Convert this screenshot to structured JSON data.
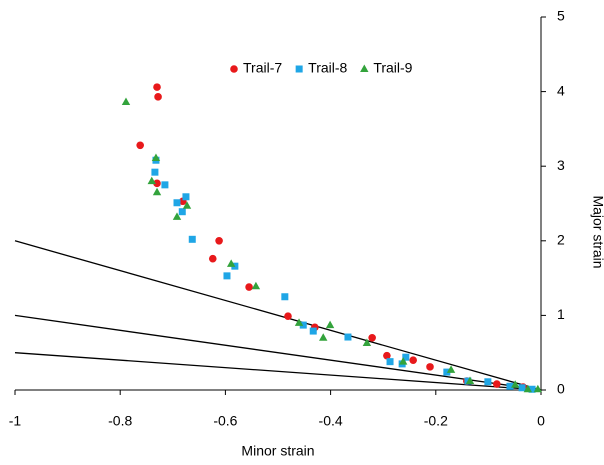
{
  "chart_data": {
    "type": "scatter",
    "x_label": "Minor strain",
    "y_label": "Major strain",
    "xlim": [
      -1,
      0
    ],
    "ylim": [
      0,
      5
    ],
    "xticks": [
      -1,
      -0.8,
      -0.6,
      -0.4,
      -0.2,
      0
    ],
    "yticks": [
      0,
      1,
      2,
      3,
      4,
      5
    ],
    "legend": "top",
    "reference_lines": [
      {
        "x": [
          -1,
          0
        ],
        "y": [
          2,
          0
        ],
        "color": "#000000"
      },
      {
        "x": [
          -1,
          0
        ],
        "y": [
          1,
          0
        ],
        "color": "#000000"
      },
      {
        "x": [
          -1,
          0
        ],
        "y": [
          0.5,
          0
        ],
        "color": "#000000"
      }
    ],
    "series": [
      {
        "name": "Trail-7",
        "color": "#e8191b",
        "marker": "circle",
        "x": [
          -0.73,
          -0.728,
          -0.762,
          -0.73,
          -0.681,
          -0.612,
          -0.624,
          -0.555,
          -0.481,
          -0.43,
          -0.321,
          -0.293,
          -0.243,
          -0.211,
          -0.141,
          -0.084,
          -0.034
        ],
        "values": [
          4.06,
          3.93,
          3.28,
          2.77,
          2.53,
          2.0,
          1.76,
          1.38,
          0.99,
          0.84,
          0.7,
          0.46,
          0.4,
          0.31,
          0.12,
          0.08,
          0.04
        ]
      },
      {
        "name": "Trail-8",
        "color": "#1fa6e6",
        "marker": "square",
        "x": [
          -0.732,
          -0.734,
          -0.715,
          -0.692,
          -0.675,
          -0.682,
          -0.663,
          -0.582,
          -0.597,
          -0.487,
          -0.452,
          -0.433,
          -0.367,
          -0.287,
          -0.264,
          -0.257,
          -0.179,
          -0.139,
          -0.101,
          -0.059,
          -0.036,
          -0.017
        ],
        "values": [
          3.08,
          2.92,
          2.75,
          2.51,
          2.59,
          2.39,
          2.02,
          1.66,
          1.53,
          1.25,
          0.87,
          0.79,
          0.71,
          0.38,
          0.35,
          0.44,
          0.24,
          0.12,
          0.11,
          0.05,
          0.03,
          0.01
        ]
      },
      {
        "name": "Trail-9",
        "color": "#33a33c",
        "marker": "triangle",
        "x": [
          -0.789,
          -0.732,
          -0.74,
          -0.73,
          -0.692,
          -0.673,
          -0.589,
          -0.542,
          -0.46,
          -0.414,
          -0.401,
          -0.331,
          -0.262,
          -0.171,
          -0.135,
          -0.049,
          -0.025,
          -0.006
        ],
        "values": [
          3.86,
          3.11,
          2.8,
          2.65,
          2.32,
          2.47,
          1.69,
          1.39,
          0.9,
          0.7,
          0.87,
          0.63,
          0.38,
          0.27,
          0.12,
          0.07,
          0.01,
          0.01
        ]
      }
    ]
  }
}
